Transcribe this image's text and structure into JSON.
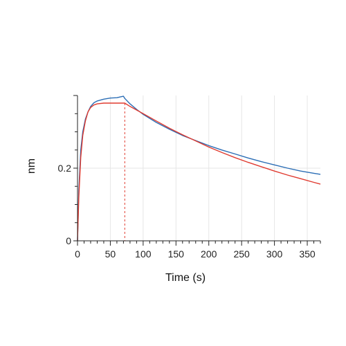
{
  "chart_data": {
    "type": "line",
    "title": "",
    "xlabel": "Time (s)",
    "ylabel": "nm",
    "xlim": [
      0,
      370
    ],
    "ylim": [
      0,
      0.4
    ],
    "x_ticks": [
      0,
      50,
      100,
      150,
      200,
      250,
      300,
      350
    ],
    "x_tick_labels": [
      "0",
      "50",
      "100",
      "150",
      "200",
      "250",
      "300",
      "350"
    ],
    "y_ticks": [
      0,
      0.2
    ],
    "y_tick_labels": [
      "0",
      "0.2"
    ],
    "grid": true,
    "legend": "none",
    "association_end_x": 72,
    "series": [
      {
        "color": "#2a6db5",
        "x": [
          0,
          2,
          5,
          8,
          12,
          16,
          20,
          25,
          30,
          40,
          50,
          60,
          65,
          70,
          72,
          80,
          90,
          100,
          120,
          140,
          160,
          180,
          200,
          220,
          240,
          260,
          280,
          300,
          320,
          340,
          360,
          370
        ],
        "y": [
          0,
          0.14,
          0.25,
          0.3,
          0.335,
          0.355,
          0.37,
          0.38,
          0.385,
          0.39,
          0.393,
          0.394,
          0.396,
          0.398,
          0.392,
          0.377,
          0.362,
          0.348,
          0.326,
          0.307,
          0.29,
          0.276,
          0.262,
          0.25,
          0.239,
          0.228,
          0.218,
          0.209,
          0.2,
          0.192,
          0.186,
          0.183
        ]
      },
      {
        "color": "#e03a2f",
        "x": [
          0,
          2,
          5,
          8,
          12,
          16,
          20,
          25,
          30,
          40,
          50,
          60,
          72,
          80,
          100,
          120,
          140,
          160,
          180,
          200,
          220,
          240,
          260,
          280,
          300,
          320,
          340,
          360,
          370
        ],
        "y": [
          0,
          0.12,
          0.23,
          0.29,
          0.33,
          0.355,
          0.367,
          0.374,
          0.377,
          0.379,
          0.379,
          0.379,
          0.379,
          0.37,
          0.35,
          0.33,
          0.31,
          0.292,
          0.275,
          0.258,
          0.243,
          0.229,
          0.216,
          0.204,
          0.192,
          0.181,
          0.171,
          0.161,
          0.156
        ]
      }
    ]
  }
}
